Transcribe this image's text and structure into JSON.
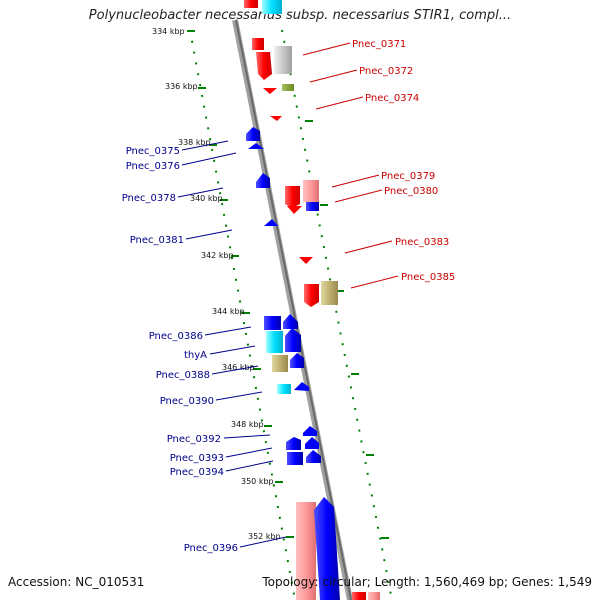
{
  "title": "Polynucleobacter necessarius subsp. necessarius STIR1, compl...",
  "accession_text": "Accession: NC_010531",
  "summary_text": "Topology: circular; Length: 1,560,469 bp; Genes: 1,549",
  "ticks": [
    {
      "label": "334 kbp"
    },
    {
      "label": "336 kbp"
    },
    {
      "label": "338 kbp"
    },
    {
      "label": "340 kbp"
    },
    {
      "label": "342 kbp"
    },
    {
      "label": "344 kbp"
    },
    {
      "label": "346 kbp"
    },
    {
      "label": "348 kbp"
    },
    {
      "label": "350 kbp"
    },
    {
      "label": "352 kbp"
    }
  ],
  "right_genes": [
    {
      "name": "Pnec_0371"
    },
    {
      "name": "Pnec_0372"
    },
    {
      "name": "Pnec_0374"
    },
    {
      "name": "Pnec_0379"
    },
    {
      "name": "Pnec_0380"
    },
    {
      "name": "Pnec_0383"
    },
    {
      "name": "Pnec_0385"
    }
  ],
  "left_genes": [
    {
      "name": "Pnec_0375"
    },
    {
      "name": "Pnec_0376"
    },
    {
      "name": "Pnec_0378"
    },
    {
      "name": "Pnec_0381"
    },
    {
      "name": "Pnec_0386"
    },
    {
      "name": "thyA"
    },
    {
      "name": "Pnec_0388"
    },
    {
      "name": "Pnec_0390"
    },
    {
      "name": "Pnec_0392"
    },
    {
      "name": "Pnec_0393"
    },
    {
      "name": "Pnec_0394"
    },
    {
      "name": "Pnec_0396"
    }
  ],
  "colors": {
    "forward_strand": "#ff0000",
    "reverse_strand": "#0000ff",
    "backbone": "#888888",
    "tick_marks": "#008000"
  }
}
